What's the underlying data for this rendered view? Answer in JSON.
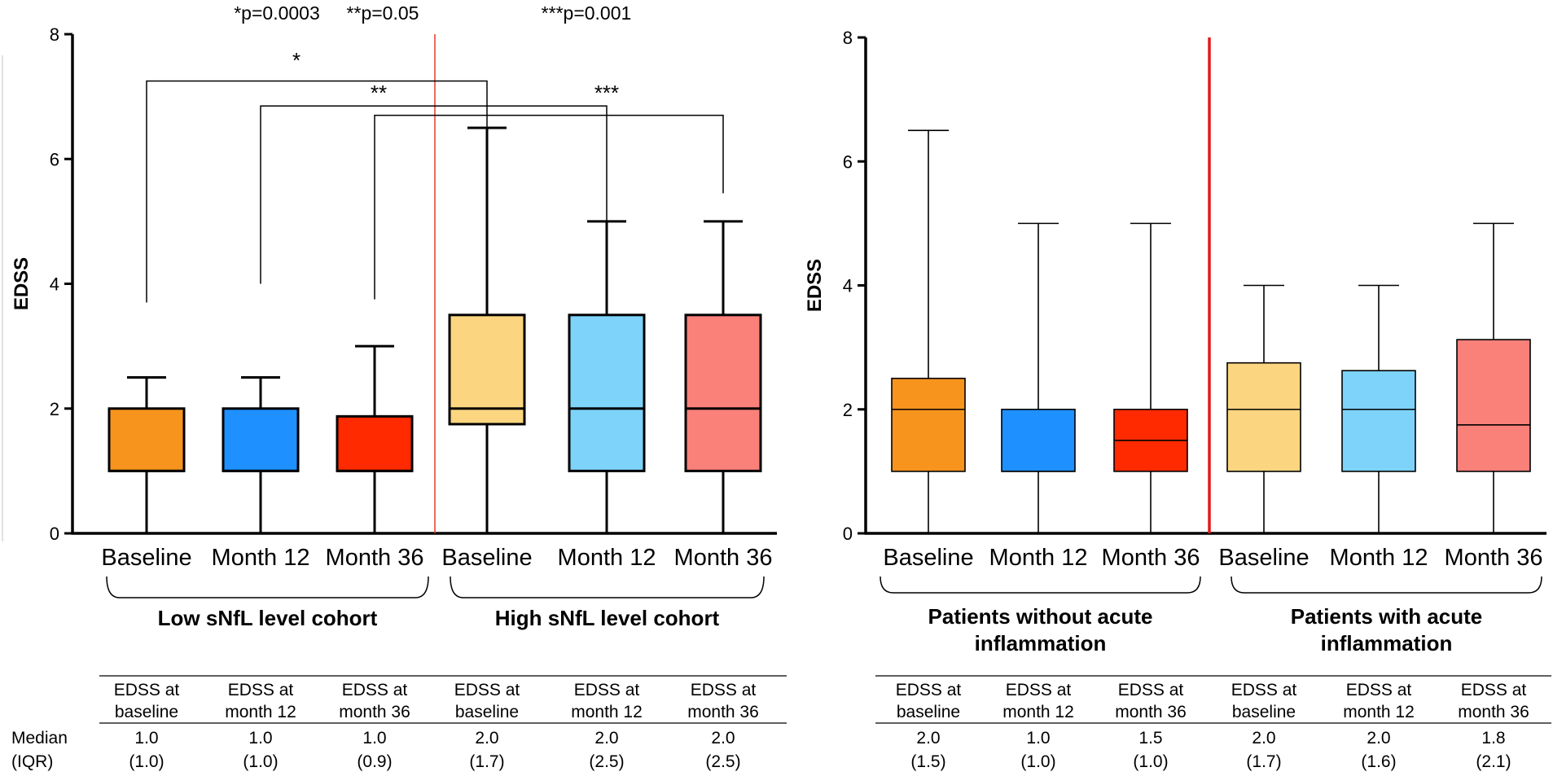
{
  "chart_data": [
    {
      "type": "box",
      "ylabel": "EDSS",
      "ylim": [
        0,
        8
      ],
      "yticks": [
        0,
        2,
        4,
        6,
        8
      ],
      "categories": [
        "Baseline",
        "Month 12",
        "Month 36",
        "Baseline",
        "Month 12",
        "Month 36"
      ],
      "groups": [
        {
          "label": "Low sNfL level cohort",
          "indices": [
            0,
            1,
            2
          ]
        },
        {
          "label": "High sNfL level cohort",
          "indices": [
            3,
            4,
            5
          ]
        }
      ],
      "boxes": [
        {
          "min": 0,
          "q1": 1.0,
          "median": 1.0,
          "q3": 2.0,
          "max": 2.5,
          "color": "#F7941D"
        },
        {
          "min": 0,
          "q1": 1.0,
          "median": 1.0,
          "q3": 2.0,
          "max": 2.5,
          "color": "#1E90FF"
        },
        {
          "min": 0,
          "q1": 1.0,
          "median": 1.0,
          "q3": 1.875,
          "max": 3.0,
          "color": "#FF2A00"
        },
        {
          "min": 0,
          "q1": 1.75,
          "median": 2.0,
          "q3": 3.5,
          "max": 6.5,
          "color": "#FCD580"
        },
        {
          "min": 0,
          "q1": 1.0,
          "median": 2.0,
          "q3": 3.5,
          "max": 5.0,
          "color": "#7DD3FA"
        },
        {
          "min": 0,
          "q1": 1.0,
          "median": 2.0,
          "q3": 3.5,
          "max": 5.0,
          "color": "#FA807A"
        }
      ],
      "significance": [
        {
          "from": 0,
          "to": 3,
          "star": "*",
          "label": "*p=0.0003",
          "level": 7.25,
          "drop_from": 3.7,
          "drop_to": 6.25
        },
        {
          "from": 1,
          "to": 4,
          "star": "**",
          "label": "**p=0.05",
          "level": 6.85,
          "drop_from": 4.0,
          "drop_to": 4.0
        },
        {
          "from": 2,
          "to": 5,
          "star": "***",
          "label": "***p=0.001",
          "level": 6.7,
          "drop_from": 3.75,
          "drop_to": 5.45
        }
      ],
      "divider_color": "#E8382A",
      "table": {
        "row_label": "Median",
        "row_label_2": "(IQR)",
        "headers": [
          [
            "EDSS at",
            "baseline"
          ],
          [
            "EDSS at",
            "month 12"
          ],
          [
            "EDSS at",
            "month 36"
          ],
          [
            "EDSS at",
            "baseline"
          ],
          [
            "EDSS at",
            "month 12"
          ],
          [
            "EDSS at",
            "month 36"
          ]
        ],
        "medians": [
          "1.0",
          "1.0",
          "1.0",
          "2.0",
          "2.0",
          "2.0"
        ],
        "iqr": [
          "(1.0)",
          "(1.0)",
          "(0.9)",
          "(1.7)",
          "(2.5)",
          "(2.5)"
        ]
      }
    },
    {
      "type": "box",
      "ylabel": "EDSS",
      "ylim": [
        0,
        8
      ],
      "yticks": [
        0,
        2,
        4,
        6,
        8
      ],
      "categories": [
        "Baseline",
        "Month 12",
        "Month 36",
        "Baseline",
        "Month 12",
        "Month 36"
      ],
      "groups": [
        {
          "label": [
            "Patients without acute",
            "inflammation"
          ],
          "indices": [
            0,
            1,
            2
          ]
        },
        {
          "label": [
            "Patients with acute",
            "inflammation"
          ],
          "indices": [
            3,
            4,
            5
          ]
        }
      ],
      "boxes": [
        {
          "min": 0,
          "q1": 1.0,
          "median": 2.0,
          "q3": 2.5,
          "max": 6.5,
          "color": "#F7941D"
        },
        {
          "min": 0,
          "q1": 1.0,
          "median": 1.0,
          "q3": 2.0,
          "max": 5.0,
          "color": "#1E90FF"
        },
        {
          "min": 0,
          "q1": 1.0,
          "median": 1.5,
          "q3": 2.0,
          "max": 5.0,
          "color": "#FF2A00"
        },
        {
          "min": 0,
          "q1": 1.0,
          "median": 2.0,
          "q3": 2.75,
          "max": 4.0,
          "color": "#FCD580"
        },
        {
          "min": 0,
          "q1": 1.0,
          "median": 2.0,
          "q3": 2.625,
          "max": 4.0,
          "color": "#7DD3FA"
        },
        {
          "min": 0,
          "q1": 1.0,
          "median": 1.75,
          "q3": 3.125,
          "max": 5.0,
          "color": "#FA807A"
        }
      ],
      "significance": [],
      "divider_color": "#E01B1B",
      "table": {
        "headers": [
          [
            "EDSS at",
            "baseline"
          ],
          [
            "EDSS at",
            "month 12"
          ],
          [
            "EDSS at",
            "month 36"
          ],
          [
            "EDSS at",
            "baseline"
          ],
          [
            "EDSS at",
            "month 12"
          ],
          [
            "EDSS at",
            "month 36"
          ]
        ],
        "medians": [
          "2.0",
          "1.0",
          "1.5",
          "2.0",
          "2.0",
          "1.8"
        ],
        "iqr": [
          "(1.5)",
          "(1.0)",
          "(1.0)",
          "(1.7)",
          "(1.6)",
          "(2.1)"
        ]
      }
    }
  ]
}
